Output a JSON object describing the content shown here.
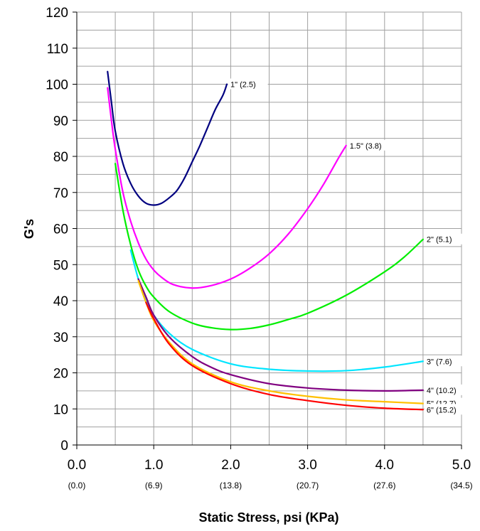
{
  "chart_data": {
    "type": "line",
    "xlabel": "Static Stress, psi (KPa)",
    "ylabel": "G's",
    "xlim": [
      0,
      5
    ],
    "ylim": [
      0,
      120
    ],
    "x_ticks": [
      {
        "value": 0,
        "label": "0.0",
        "sub": "(0.0)"
      },
      {
        "value": 1,
        "label": "1.0",
        "sub": "(6.9)"
      },
      {
        "value": 2,
        "label": "2.0",
        "sub": "(13.8)"
      },
      {
        "value": 3,
        "label": "3.0",
        "sub": "(20.7)"
      },
      {
        "value": 4,
        "label": "4.0",
        "sub": "(27.6)"
      },
      {
        "value": 5,
        "label": "5.0",
        "sub": "(34.5)"
      }
    ],
    "y_ticks": [
      0,
      10,
      20,
      30,
      40,
      50,
      60,
      70,
      80,
      90,
      100,
      110,
      120
    ],
    "grid": true,
    "series": [
      {
        "name": "1\" (2.5)",
        "color": "#000080",
        "points": [
          [
            0.4,
            103.5
          ],
          [
            0.45,
            95
          ],
          [
            0.5,
            87
          ],
          [
            0.6,
            78
          ],
          [
            0.7,
            72.5
          ],
          [
            0.8,
            69
          ],
          [
            0.9,
            67
          ],
          [
            1.0,
            66.5
          ],
          [
            1.1,
            67
          ],
          [
            1.2,
            68.5
          ],
          [
            1.3,
            70.5
          ],
          [
            1.4,
            74
          ],
          [
            1.5,
            78.5
          ],
          [
            1.6,
            83
          ],
          [
            1.7,
            88
          ],
          [
            1.8,
            93
          ],
          [
            1.9,
            97
          ],
          [
            1.95,
            100
          ]
        ]
      },
      {
        "name": "1.5\" (3.8)",
        "color": "#ff00ff",
        "points": [
          [
            0.4,
            99
          ],
          [
            0.45,
            90
          ],
          [
            0.5,
            82
          ],
          [
            0.6,
            70
          ],
          [
            0.7,
            62
          ],
          [
            0.8,
            56
          ],
          [
            0.9,
            51.5
          ],
          [
            1.0,
            48.5
          ],
          [
            1.1,
            46.5
          ],
          [
            1.25,
            44.5
          ],
          [
            1.5,
            43.5
          ],
          [
            1.75,
            44.2
          ],
          [
            2.0,
            46
          ],
          [
            2.25,
            49
          ],
          [
            2.5,
            53
          ],
          [
            2.75,
            58.5
          ],
          [
            3.0,
            65.5
          ],
          [
            3.2,
            72
          ],
          [
            3.4,
            79.5
          ],
          [
            3.5,
            83
          ]
        ]
      },
      {
        "name": "2\" (5.1)",
        "color": "#00ee00",
        "points": [
          [
            0.5,
            78
          ],
          [
            0.6,
            65
          ],
          [
            0.7,
            55.5
          ],
          [
            0.8,
            48.5
          ],
          [
            0.9,
            44
          ],
          [
            1.0,
            41
          ],
          [
            1.2,
            37
          ],
          [
            1.5,
            33.8
          ],
          [
            1.75,
            32.5
          ],
          [
            2.0,
            32
          ],
          [
            2.25,
            32.3
          ],
          [
            2.5,
            33.3
          ],
          [
            2.75,
            34.8
          ],
          [
            3.0,
            36.5
          ],
          [
            3.5,
            41.5
          ],
          [
            4.0,
            48
          ],
          [
            4.25,
            52
          ],
          [
            4.5,
            57
          ]
        ]
      },
      {
        "name": "3\" (7.6)",
        "color": "#00e5ff",
        "points": [
          [
            0.7,
            54
          ],
          [
            0.8,
            46
          ],
          [
            0.9,
            40.5
          ],
          [
            1.0,
            36
          ],
          [
            1.2,
            31
          ],
          [
            1.5,
            26.5
          ],
          [
            2.0,
            22.5
          ],
          [
            2.5,
            21
          ],
          [
            3.0,
            20.5
          ],
          [
            3.5,
            20.6
          ],
          [
            4.0,
            21.6
          ],
          [
            4.5,
            23.2
          ]
        ]
      },
      {
        "name": "4\" (10.2)",
        "color": "#800080",
        "points": [
          [
            0.8,
            46
          ],
          [
            0.9,
            41
          ],
          [
            1.0,
            36
          ],
          [
            1.2,
            30
          ],
          [
            1.5,
            24.5
          ],
          [
            1.75,
            21.5
          ],
          [
            2.0,
            19.5
          ],
          [
            2.5,
            17
          ],
          [
            3.0,
            15.8
          ],
          [
            3.5,
            15.2
          ],
          [
            4.0,
            15
          ],
          [
            4.5,
            15.2
          ]
        ]
      },
      {
        "name": "5\" (12.7)",
        "color": "#ffc000",
        "points": [
          [
            0.8,
            45.5
          ],
          [
            0.9,
            39.5
          ],
          [
            1.0,
            34.5
          ],
          [
            1.2,
            28.5
          ],
          [
            1.5,
            22.5
          ],
          [
            2.0,
            17.5
          ],
          [
            2.5,
            15
          ],
          [
            3.0,
            13.5
          ],
          [
            3.5,
            12.5
          ],
          [
            4.0,
            12
          ],
          [
            4.5,
            11.5
          ]
        ]
      },
      {
        "name": "6\" (15.2)",
        "color": "#ff0000",
        "points": [
          [
            0.9,
            39.5
          ],
          [
            1.0,
            35
          ],
          [
            1.2,
            28
          ],
          [
            1.5,
            22
          ],
          [
            2.0,
            17
          ],
          [
            2.5,
            14
          ],
          [
            3.0,
            12.3
          ],
          [
            3.5,
            11
          ],
          [
            4.0,
            10.2
          ],
          [
            4.5,
            9.8
          ]
        ]
      }
    ]
  }
}
